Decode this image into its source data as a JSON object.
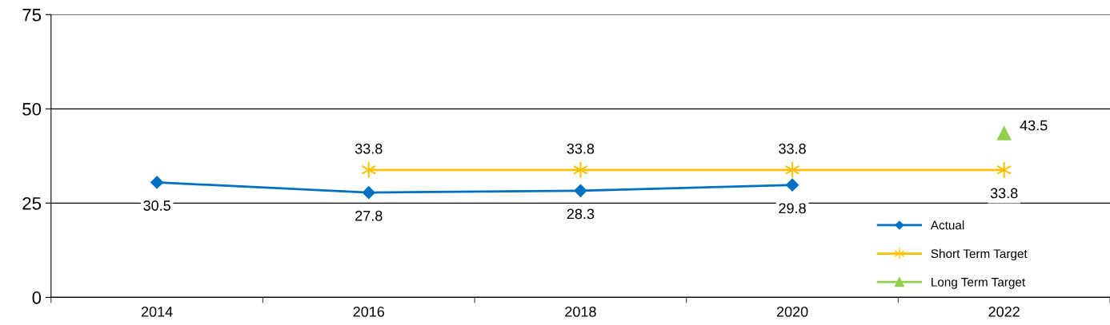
{
  "chart_data": {
    "type": "line",
    "categories": [
      "2014",
      "2016",
      "2018",
      "2020",
      "2022"
    ],
    "series": [
      {
        "name": "Actual",
        "color": "#0070c0",
        "marker": "diamond",
        "values": [
          30.5,
          27.8,
          28.3,
          29.8,
          null
        ]
      },
      {
        "name": "Short Term Target",
        "color": "#ffc000",
        "marker": "cross",
        "values": [
          null,
          33.8,
          33.8,
          33.8,
          33.8
        ]
      },
      {
        "name": "Long Term Target",
        "color": "#92d050",
        "marker": "triangle",
        "values": [
          null,
          null,
          null,
          null,
          43.5
        ]
      }
    ],
    "ylim": [
      0,
      75
    ],
    "yticks": [
      0,
      25,
      50,
      75
    ],
    "grid": "y",
    "legend": "bottom right",
    "data_labels": true
  }
}
